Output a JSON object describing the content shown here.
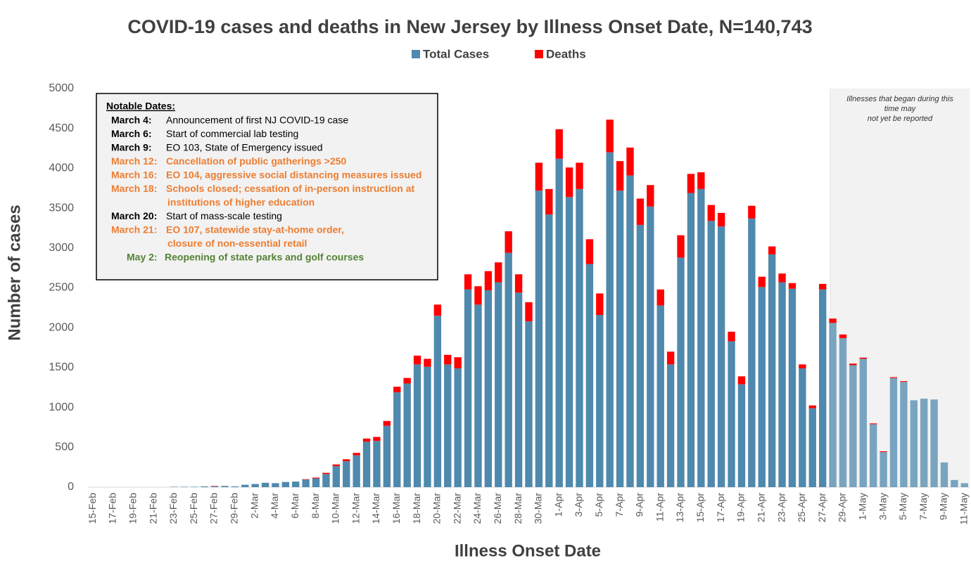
{
  "chart_data": {
    "type": "stacked_bar",
    "title": "COVID-19 cases and deaths in New Jersey by Illness Onset Date, N=140,743",
    "x_label": "Illness Onset Date",
    "y_label": "Number of cases",
    "categories": [
      "15-Feb",
      null,
      "17-Feb",
      null,
      "19-Feb",
      null,
      "21-Feb",
      null,
      "23-Feb",
      null,
      "25-Feb",
      null,
      "27-Feb",
      null,
      "29-Feb",
      null,
      "2-Mar",
      null,
      "4-Mar",
      null,
      "6-Mar",
      null,
      "8-Mar",
      null,
      "10-Mar",
      null,
      "12-Mar",
      null,
      "14-Mar",
      null,
      "16-Mar",
      null,
      "18-Mar",
      null,
      "20-Mar",
      null,
      "22-Mar",
      null,
      "24-Mar",
      null,
      "26-Mar",
      null,
      "28-Mar",
      null,
      "30-Mar",
      null,
      "1-Apr",
      null,
      "3-Apr",
      null,
      "5-Apr",
      null,
      "7-Apr",
      null,
      "9-Apr",
      null,
      "11-Apr",
      null,
      "13-Apr",
      null,
      "15-Apr",
      null,
      "17-Apr",
      null,
      "19-Apr",
      null,
      "21-Apr",
      null,
      "23-Apr",
      null,
      "25-Apr",
      null,
      "27-Apr",
      null,
      "29-Apr",
      null,
      "1-May",
      null,
      "3-May",
      null,
      "5-May",
      null,
      "7-May",
      null,
      "9-May",
      null,
      "11-May"
    ],
    "series": [
      {
        "name": "Total Cases",
        "color": "#4f89ad",
        "values": [
          0,
          0,
          0,
          0,
          0,
          0,
          0,
          0,
          5,
          5,
          5,
          10,
          10,
          15,
          10,
          30,
          40,
          55,
          50,
          65,
          70,
          95,
          110,
          165,
          265,
          325,
          400,
          570,
          580,
          770,
          1190,
          1300,
          1540,
          1510,
          2150,
          1540,
          1490,
          2480,
          2290,
          2470,
          2570,
          2940,
          2440,
          2080,
          3720,
          3420,
          4120,
          3640,
          3740,
          2800,
          2160,
          4200,
          3720,
          3910,
          3290,
          3520,
          2280,
          1540,
          2880,
          3690,
          3740,
          3340,
          3270,
          1830,
          1290,
          3370,
          2510,
          2920,
          2570,
          2490,
          1490,
          990,
          2480,
          2060,
          1870,
          1530,
          1610,
          790,
          440,
          1370,
          1320,
          1090,
          1110,
          1100,
          310,
          90,
          50
        ]
      },
      {
        "name": "Deaths",
        "color": "#ff0000",
        "values": [
          0,
          0,
          0,
          0,
          0,
          0,
          0,
          0,
          0,
          0,
          0,
          0,
          5,
          0,
          0,
          0,
          0,
          0,
          0,
          0,
          0,
          5,
          10,
          15,
          20,
          25,
          30,
          40,
          50,
          60,
          70,
          70,
          110,
          100,
          140,
          120,
          140,
          190,
          230,
          240,
          250,
          270,
          230,
          240,
          350,
          320,
          370,
          370,
          330,
          310,
          270,
          410,
          370,
          350,
          330,
          270,
          200,
          160,
          280,
          240,
          210,
          200,
          170,
          120,
          100,
          160,
          130,
          100,
          110,
          70,
          50,
          35,
          70,
          55,
          45,
          20,
          15,
          10,
          10,
          10,
          10,
          0,
          0,
          0,
          0,
          0,
          0
        ]
      }
    ],
    "ylim": [
      0,
      5000
    ],
    "yticks": [
      0,
      500,
      1000,
      1500,
      2000,
      2500,
      3000,
      3500,
      4000,
      4500,
      5000
    ],
    "grid": false,
    "legend": "top",
    "shaded_note": [
      "Illnesses that began during this",
      "time may",
      "not yet be reported"
    ],
    "notes_title": "Notable Dates:",
    "notes": [
      {
        "date": "March 4:",
        "text": [
          "Announcement of first NJ COVID-19 case"
        ],
        "color": "#000000"
      },
      {
        "date": "March 6:",
        "text": [
          "Start of commercial lab testing"
        ],
        "color": "#000000"
      },
      {
        "date": "March 9:",
        "text": [
          "EO 103, State of Emergency issued"
        ],
        "color": "#000000"
      },
      {
        "date": "March 12:",
        "text": [
          "Cancellation of public gatherings >250"
        ],
        "color": "#ed7d31"
      },
      {
        "date": "March 16:",
        "text": [
          "EO 104, aggressive social distancing measures issued"
        ],
        "color": "#ed7d31"
      },
      {
        "date": "March 18:",
        "text": [
          "Schools closed; cessation of in-person instruction at",
          "institutions of higher education"
        ],
        "color": "#ed7d31"
      },
      {
        "date": "March 20:",
        "text": [
          "Start of mass-scale testing"
        ],
        "color": "#000000"
      },
      {
        "date": "March 21:",
        "text": [
          "EO 107, statewide stay-at-home order,",
          "closure of non-essential retail"
        ],
        "color": "#ed7d31"
      },
      {
        "date": "May 2:",
        "text": [
          "Reopening of state parks and golf courses"
        ],
        "color": "#548235"
      }
    ]
  }
}
